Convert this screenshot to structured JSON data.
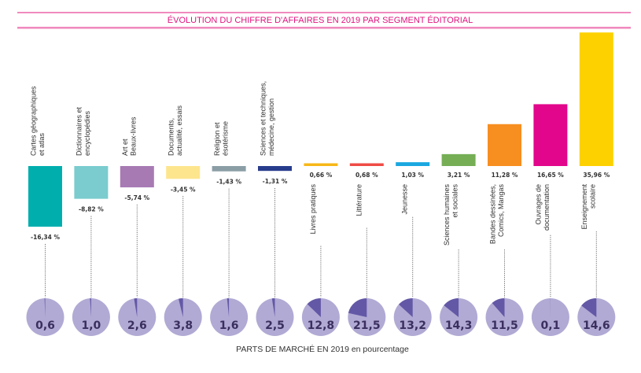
{
  "chart_data": {
    "type": "bar",
    "title": "ÉVOLUTION DU CHIFFRE D'AFFAIRES EN 2019 PAR SEGMENT ÉDITORIAL",
    "footer": "PARTS DE MARCHÉ EN 2019 en pourcentage",
    "unit": "%",
    "categories": [
      [
        "Cartes géographiques",
        "et atlas"
      ],
      [
        "Dictionnaires et",
        "encyclopédies"
      ],
      [
        "Art et",
        "Beaux-livres"
      ],
      [
        "Documents,",
        "actualité, essais"
      ],
      [
        "Religion et",
        "ésotérisme"
      ],
      [
        "Sciences et techniques,",
        "médecine, gestion"
      ],
      [
        "Livres pratiques"
      ],
      [
        "Littérature"
      ],
      [
        "Jeunesse"
      ],
      [
        "Sciences humaines",
        "et sociales"
      ],
      [
        "Bandes dessinées,",
        "Comics, Mangas"
      ],
      [
        "Ouvrages de",
        "documentation"
      ],
      [
        "Enseignement",
        "scolaire"
      ]
    ],
    "series": [
      {
        "name": "Évolution du chiffre d'affaires 2019",
        "values": [
          -16.34,
          -8.82,
          -5.74,
          -3.45,
          -1.43,
          -1.31,
          0.66,
          0.68,
          1.03,
          3.21,
          11.28,
          16.65,
          35.96
        ],
        "labels": [
          "-16,34 %",
          "-8,82 %",
          "-5,74 %",
          "-3,45 %",
          "-1,43 %",
          "-1,31 %",
          "0,66 %",
          "0,68 %",
          "1,03 %",
          "3,21 %",
          "11,28 %",
          "16,65 %",
          "35,96 %"
        ]
      },
      {
        "name": "Parts de marché en 2019",
        "type": "pie",
        "values": [
          0.6,
          1.0,
          2.6,
          3.8,
          1.6,
          2.5,
          12.8,
          21.5,
          13.2,
          14.3,
          11.5,
          0.1,
          14.6
        ],
        "labels": [
          "0,6",
          "1,0",
          "2,6",
          "3,8",
          "1,6",
          "2,5",
          "12,8",
          "21,5",
          "13,2",
          "14,3",
          "11,5",
          "0,1",
          "14,6"
        ]
      }
    ],
    "colors": [
      "#00aeae",
      "#7accce",
      "#a77ab4",
      "#fde58e",
      "#8b9ea6",
      "#283c8c",
      "#f7b717",
      "#ef4b45",
      "#1aa7e0",
      "#76ae56",
      "#f78e20",
      "#e2068c",
      "#fdd100"
    ],
    "pie_colors": {
      "base": "#b1aad4",
      "slice": "#6358a6"
    },
    "accent": "#e0147e",
    "ylim": [
      -17,
      36
    ]
  }
}
